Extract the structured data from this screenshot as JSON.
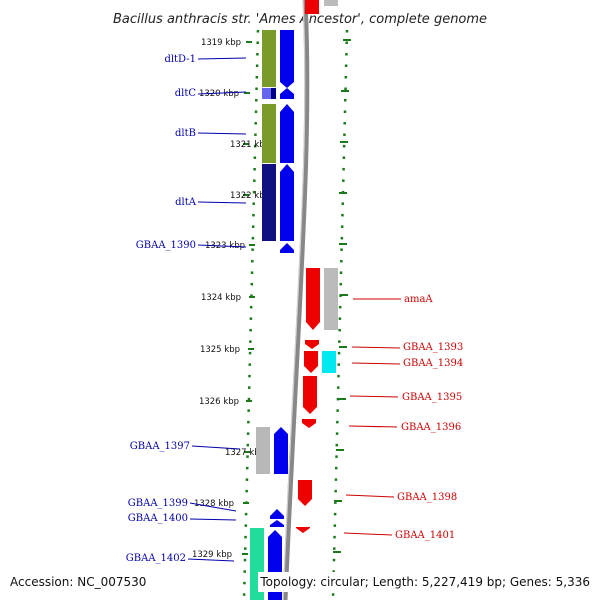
{
  "title": "Bacillus anthracis str. 'Ames Ancestor', complete genome",
  "footer": {
    "accession": "Accession: NC_007530",
    "topology": "Topology: circular; Length: 5,227,419 bp; Genes: 5,336"
  },
  "colors": {
    "forward_label": "#cc0000",
    "reverse_label": "#0000aa",
    "tick": "#1a7a1a",
    "backbone": "#888888"
  },
  "kbp_ticks": [
    "1319 kbp",
    "1320 kbp",
    "1321 kbp",
    "1322 kbp",
    "1323 kbp",
    "1324 kbp",
    "1325 kbp",
    "1326 kbp",
    "1327 kbp",
    "1328 kbp",
    "1329 kbp"
  ],
  "reverse_genes": [
    {
      "name": "dltD-1"
    },
    {
      "name": "dltC"
    },
    {
      "name": "dltB"
    },
    {
      "name": "dltA"
    },
    {
      "name": "GBAA_1390"
    },
    {
      "name": "GBAA_1397"
    },
    {
      "name": "GBAA_1399"
    },
    {
      "name": "GBAA_1400"
    },
    {
      "name": "GBAA_1402"
    }
  ],
  "forward_genes": [
    {
      "name": "amaA"
    },
    {
      "name": "GBAA_1393"
    },
    {
      "name": "GBAA_1394"
    },
    {
      "name": "GBAA_1395"
    },
    {
      "name": "GBAA_1396"
    },
    {
      "name": "GBAA_1398"
    },
    {
      "name": "GBAA_1401"
    }
  ]
}
